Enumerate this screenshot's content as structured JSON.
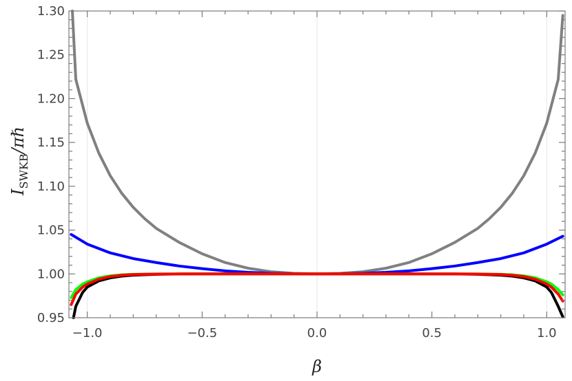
{
  "chart_data": {
    "type": "line",
    "title": "",
    "xlabel": "β",
    "ylabel": {
      "main": "I",
      "sub": "SWKB",
      "rest": "/πℏ"
    },
    "xlim": [
      -1.08,
      1.08
    ],
    "ylim": [
      0.95,
      1.3
    ],
    "xticks": [
      {
        "value": -1.0,
        "label": "−1.0"
      },
      {
        "value": -0.5,
        "label": "−0.5"
      },
      {
        "value": 0.0,
        "label": "0.0"
      },
      {
        "value": 0.5,
        "label": "0.5"
      },
      {
        "value": 1.0,
        "label": "1.0"
      }
    ],
    "yticks": [
      {
        "value": 0.95,
        "label": "0.95"
      },
      {
        "value": 1.0,
        "label": "1.00"
      },
      {
        "value": 1.05,
        "label": "1.05"
      },
      {
        "value": 1.1,
        "label": "1.10"
      },
      {
        "value": 1.15,
        "label": "1.15"
      },
      {
        "value": 1.2,
        "label": "1.20"
      },
      {
        "value": 1.25,
        "label": "1.25"
      },
      {
        "value": 1.3,
        "label": "1.30"
      }
    ],
    "gridlines_x": [
      -1.0,
      0.0,
      1.0
    ],
    "series": [
      {
        "color": "#808080",
        "x": [
          -1.065,
          -1.05,
          -1.0,
          -0.95,
          -0.9,
          -0.85,
          -0.8,
          -0.75,
          -0.7,
          -0.6,
          -0.5,
          -0.4,
          -0.3,
          -0.2,
          -0.1,
          0.0,
          0.1,
          0.2,
          0.3,
          0.4,
          0.5,
          0.6,
          0.7,
          0.75,
          0.8,
          0.85,
          0.9,
          0.95,
          1.0,
          1.05,
          1.07
        ],
        "y": [
          1.3,
          1.222,
          1.172,
          1.138,
          1.112,
          1.092,
          1.076,
          1.063,
          1.052,
          1.036,
          1.023,
          1.013,
          1.0065,
          1.0025,
          1.0006,
          1.0,
          1.0006,
          1.0025,
          1.0065,
          1.013,
          1.023,
          1.036,
          1.052,
          1.063,
          1.076,
          1.092,
          1.112,
          1.138,
          1.172,
          1.222,
          1.295
        ]
      },
      {
        "color": "#0000ff",
        "x": [
          -1.07,
          -1.0,
          -0.9,
          -0.8,
          -0.7,
          -0.6,
          -0.5,
          -0.4,
          -0.3,
          -0.2,
          -0.1,
          0.0,
          0.1,
          0.2,
          0.3,
          0.4,
          0.5,
          0.6,
          0.7,
          0.8,
          0.9,
          1.0,
          1.07
        ],
        "y": [
          1.045,
          1.034,
          1.024,
          1.0175,
          1.013,
          1.009,
          1.006,
          1.0035,
          1.0018,
          1.0007,
          1.0002,
          1.0,
          1.0002,
          1.0007,
          1.0018,
          1.0035,
          1.006,
          1.009,
          1.013,
          1.0175,
          1.024,
          1.034,
          1.043
        ]
      },
      {
        "color": "#000000",
        "x": [
          -1.06,
          -1.05,
          -1.02,
          -1.0,
          -0.95,
          -0.9,
          -0.85,
          -0.8,
          -0.7,
          -0.6,
          -0.4,
          0.0,
          0.4,
          0.6,
          0.7,
          0.8,
          0.85,
          0.9,
          0.95,
          1.0,
          1.02,
          1.05,
          1.07
        ],
        "y": [
          0.95,
          0.963,
          0.979,
          0.985,
          0.992,
          0.9955,
          0.9975,
          0.9986,
          0.9995,
          0.9999,
          1.0,
          1.0,
          1.0,
          0.9999,
          0.9995,
          0.9986,
          0.9975,
          0.9955,
          0.992,
          0.985,
          0.979,
          0.963,
          0.951
        ]
      },
      {
        "color": "#00ff00",
        "x": [
          -1.07,
          -1.05,
          -1.02,
          -1.0,
          -0.95,
          -0.9,
          -0.85,
          -0.8,
          -0.7,
          -0.6,
          -0.4,
          0.0,
          0.4,
          0.6,
          0.7,
          0.8,
          0.85,
          0.9,
          0.95,
          1.0,
          1.02,
          1.05,
          1.07
        ],
        "y": [
          0.973,
          0.982,
          0.9885,
          0.991,
          0.9955,
          0.9978,
          0.999,
          0.9995,
          0.9999,
          1.0,
          1.0,
          1.0,
          1.0,
          1.0,
          0.9999,
          0.9995,
          0.999,
          0.9978,
          0.9955,
          0.991,
          0.9885,
          0.982,
          0.976
        ]
      },
      {
        "color": "#ff0000",
        "x": [
          -1.07,
          -1.05,
          -1.02,
          -1.0,
          -0.95,
          -0.9,
          -0.85,
          -0.8,
          -0.7,
          -0.6,
          -0.4,
          0.0,
          0.4,
          0.6,
          0.7,
          0.8,
          0.85,
          0.9,
          0.95,
          1.0,
          1.02,
          1.05,
          1.07
        ],
        "y": [
          0.965,
          0.977,
          0.985,
          0.9885,
          0.994,
          0.997,
          0.9985,
          0.9993,
          0.9998,
          1.0,
          1.0,
          1.0,
          1.0,
          1.0,
          0.9998,
          0.9993,
          0.9985,
          0.997,
          0.994,
          0.9885,
          0.985,
          0.977,
          0.969
        ]
      }
    ]
  }
}
